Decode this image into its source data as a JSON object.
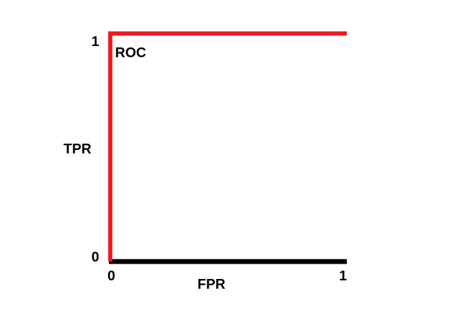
{
  "chart_data": {
    "type": "line",
    "title": "",
    "xlabel": "FPR",
    "ylabel": "TPR",
    "xlim": [
      0,
      1
    ],
    "ylim": [
      0,
      1
    ],
    "x_ticks": [
      "0",
      "1"
    ],
    "y_ticks": [
      "0",
      "1"
    ],
    "grid": false,
    "series": [
      {
        "name": "ROC",
        "x": [
          0,
          0,
          1
        ],
        "y": [
          0,
          1,
          1
        ],
        "color": "#ed1c24"
      }
    ],
    "axis_color": "#000000"
  }
}
